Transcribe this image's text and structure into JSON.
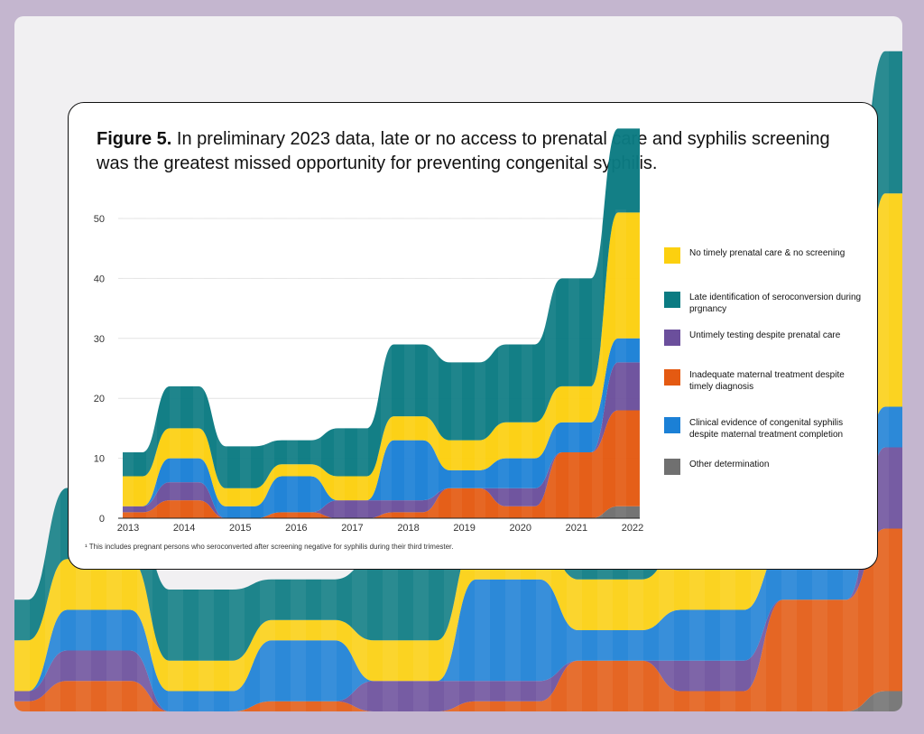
{
  "figure": {
    "label": "Figure 5.",
    "text": "In preliminary 2023 data, late or no access to prenatal care and syphilis screening was the greatest missed opportunity for preventing congenital syphilis."
  },
  "footnote": "¹ This includes pregnant persons who seroconverted after screening negative for syphilis during their third trimester.",
  "colors": {
    "page_bg": "#c4b6cf",
    "panel_bg": "#f1f0f2",
    "yellow": "#fcd00f",
    "teal": "#0b7b82",
    "purple": "#6b4f9c",
    "orange": "#e45a12",
    "blue": "#1b80d6",
    "gray": "#707070"
  },
  "chart_data": {
    "type": "area",
    "subtype": "stacked-streamgraph",
    "categories": [
      "2013",
      "2014",
      "2015",
      "2016",
      "2017",
      "2018",
      "2019",
      "2020",
      "2021",
      "2022"
    ],
    "ylim": [
      0,
      50
    ],
    "yticks": [
      "0",
      "10",
      "20",
      "30",
      "40",
      "50"
    ],
    "grid": true,
    "legend_position": "right",
    "title": "",
    "xlabel": "",
    "ylabel": "",
    "series": [
      {
        "name": "Other determination",
        "color": "#707070",
        "values": [
          0,
          0,
          0,
          0,
          0,
          0,
          0,
          0,
          0,
          2
        ]
      },
      {
        "name": "Inadequate maternal treatment despite timely diagnosis",
        "color": "#e45a12",
        "values": [
          1,
          3,
          0,
          1,
          0,
          1,
          5,
          2,
          11,
          16
        ]
      },
      {
        "name": "Untimely testing despite prenatal care",
        "color": "#6b4f9c",
        "values": [
          1,
          3,
          0,
          0,
          3,
          2,
          0,
          3,
          0,
          8
        ]
      },
      {
        "name": "Clinical evidence of congenital syphilis despite maternal treatment completion",
        "color": "#1b80d6",
        "values": [
          0,
          4,
          2,
          6,
          0,
          10,
          3,
          5,
          5,
          4
        ]
      },
      {
        "name": "No timely prenatal care & no screening",
        "color": "#fcd00f",
        "values": [
          5,
          5,
          3,
          2,
          4,
          4,
          5,
          6,
          6,
          21
        ]
      },
      {
        "name": "Late identification of seroconversion during prgnancy",
        "color": "#0b7b82",
        "values": [
          4,
          7,
          7,
          4,
          8,
          12,
          13,
          13,
          18,
          14
        ]
      }
    ],
    "legend": [
      {
        "label": "No timely prenatal care & no screening",
        "color": "#fcd00f"
      },
      {
        "label": "Late identification of seroconversion during prgnancy",
        "color": "#0b7b82"
      },
      {
        "label": "Untimely testing despite prenatal care",
        "color": "#6b4f9c"
      },
      {
        "label": "Inadequate maternal treatment despite timely diagnosis",
        "color": "#e45a12"
      },
      {
        "label": "Clinical evidence of congenital syphilis despite maternal treatment completion",
        "color": "#1b80d6"
      },
      {
        "label": "Other determination",
        "color": "#707070"
      }
    ]
  }
}
